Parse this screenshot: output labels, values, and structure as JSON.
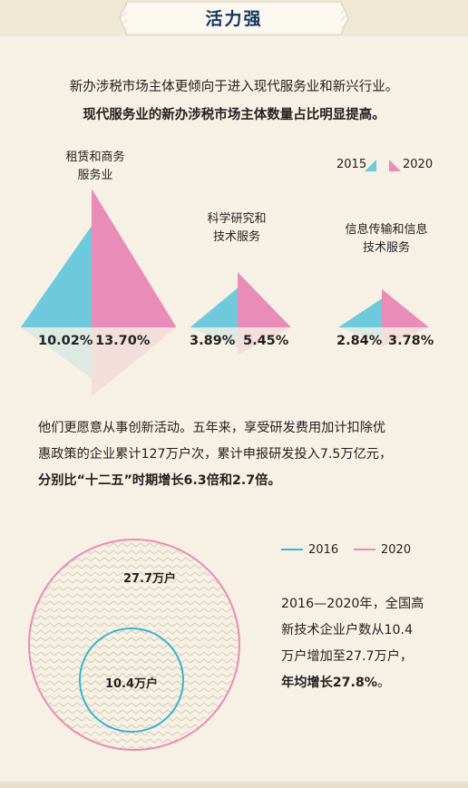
{
  "section_title": "活力强",
  "intro_line1": "新办涉税市场主体更倾向于进入现代服务业和新兴行业。",
  "intro_line2": "现代服务业的新办涉税市场主体数量占比明显提高。",
  "colors": {
    "cyan": "#6ec9dd",
    "pink": "#e98cb8",
    "navy": "#13365f"
  },
  "chart_data": [
    {
      "type": "bar",
      "title": "",
      "categories": [
        "租赁和商务服务业",
        "科学研究和技术服务",
        "信息传输和信息技术服务"
      ],
      "series": [
        {
          "name": "2015",
          "values": [
            10.02,
            3.89,
            2.84
          ]
        },
        {
          "name": "2020",
          "values": [
            13.7,
            5.45,
            3.78
          ]
        }
      ],
      "value_labels": [
        [
          "10.02%",
          "13.70%"
        ],
        [
          "3.89%",
          "5.45%"
        ],
        [
          "2.84%",
          "3.78%"
        ]
      ],
      "legend": [
        "2015",
        "2020"
      ],
      "legend_position": "top-right"
    },
    {
      "type": "area",
      "title": "",
      "categories": [
        "2016",
        "2020"
      ],
      "values": [
        10.4,
        27.7
      ],
      "value_labels": [
        "10.4万户",
        "27.7万户"
      ],
      "legend": [
        "2016",
        "2020"
      ],
      "legend_position": "top-right"
    }
  ],
  "category_label_lines": [
    [
      "租赁和商务",
      "服务业"
    ],
    [
      "科学研究和",
      "技术服务"
    ],
    [
      "信息传输和信息",
      "技术服务"
    ]
  ],
  "para2": {
    "line1": "他们更愿意从事创新活动。五年来，享受研发费用加计扣除优",
    "line2": "惠政策的企业累计127万户次，累计申报研发投入7.5万亿元，",
    "line3": "分别比“十二五”时期增长6.3倍和2.7倍。"
  },
  "para3": {
    "line1": "2016—2020年，全国高",
    "line2": "新技术企业户数从10.4",
    "line3": "万户增加至27.7万户，",
    "line4_bold": "年均增长27.8%",
    "line4_end": "。"
  }
}
